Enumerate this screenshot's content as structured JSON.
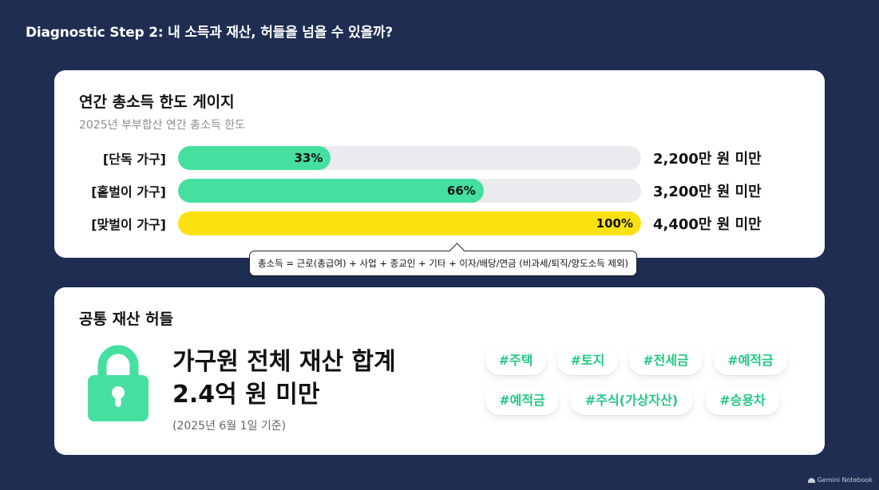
{
  "page": {
    "title": "Diagnostic Step 2: 내 소득과 재산, 허들을 넘을 수 있을까?"
  },
  "income_card": {
    "title": "연간 총소득 한도 게이지",
    "subtitle": "2025년 부부합산 연간 총소득 한도",
    "gauges": [
      {
        "label": "[단독 가구]",
        "percent_text": "33%",
        "fill_percent": 33,
        "limit": "2,200만 원 미만",
        "fill_color": "#45df9f"
      },
      {
        "label": "[홑벌이 가구]",
        "percent_text": "66%",
        "fill_percent": 66,
        "limit": "3,200만 원 미만",
        "fill_color": "#45df9f"
      },
      {
        "label": "[맞벌이 가구]",
        "percent_text": "100%",
        "fill_percent": 100,
        "limit": "4,400만 원 미만",
        "fill_color": "#fbe10f"
      }
    ],
    "tooltip": "총소득 = 근로(총급여) + 사업 + 종교인 + 기타 + 이자/배당/연금 (비과세/퇴직/양도소득 제외)"
  },
  "asset_card": {
    "title": "공통 재산 허들",
    "main_line1": "가구원 전체 재산 합계",
    "main_line2": "2.4억 원 미만",
    "date_note": "(2025년 6월 1일 기준)",
    "lock_icon_color": "#45df9f",
    "tags": [
      "#주택",
      "#토지",
      "#전세금",
      "#예적금",
      "#예적금",
      "#주식(가상자산)",
      "#승용차"
    ]
  },
  "watermark": "Gemini Notebook"
}
